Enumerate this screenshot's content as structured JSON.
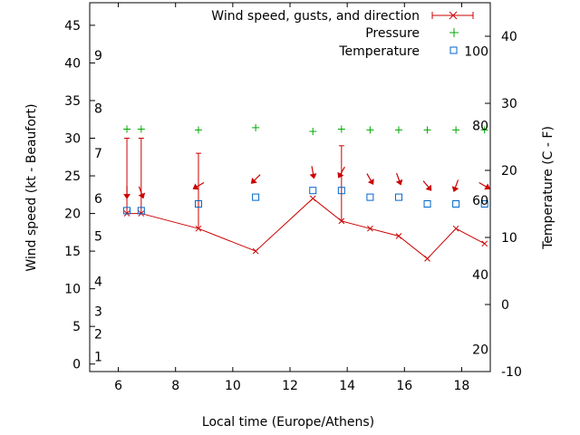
{
  "chart_data": {
    "type": "line",
    "xlabel": "Local time (Europe/Athens)",
    "ylabel_left": "Wind speed (kt - Beaufort)",
    "ylabel_right": "Temperature (C - F)",
    "xlim": [
      5,
      19
    ],
    "ylim_left": [
      -1,
      48
    ],
    "ylim_right": [
      -10,
      45
    ],
    "x_ticks": [
      6,
      8,
      10,
      12,
      14,
      16,
      18
    ],
    "y_left_ticks": [
      0,
      5,
      10,
      15,
      20,
      25,
      30,
      35,
      40,
      45
    ],
    "y_right_ticks": [
      -10,
      0,
      10,
      20,
      30,
      40
    ],
    "beaufort_labels": [
      {
        "label": "1",
        "kt": 1
      },
      {
        "label": "2",
        "kt": 4
      },
      {
        "label": "3",
        "kt": 7
      },
      {
        "label": "4",
        "kt": 11
      },
      {
        "label": "5",
        "kt": 17
      },
      {
        "label": "6",
        "kt": 22
      },
      {
        "label": "7",
        "kt": 28
      },
      {
        "label": "8",
        "kt": 34
      },
      {
        "label": "9",
        "kt": 41
      }
    ],
    "fahrenheit_labels": [
      {
        "label": "20",
        "f": 20
      },
      {
        "label": "40",
        "f": 40
      },
      {
        "label": "60",
        "f": 60
      },
      {
        "label": "80",
        "f": 80
      },
      {
        "label": "100",
        "f": 100
      }
    ],
    "legend": {
      "position": "top-right",
      "entries": [
        "Wind speed, gusts, and direction",
        "Pressure",
        "Temperature"
      ]
    },
    "colors": {
      "wind": "#cc0000",
      "pressure": "#00aa00",
      "temperature": "#0066cc"
    },
    "series": [
      {
        "name": "Wind speed, gusts, and direction",
        "axis": "left",
        "x": [
          6.3,
          6.8,
          8.8,
          10.8,
          12.8,
          13.8,
          14.8,
          15.8,
          16.8,
          17.8,
          18.8
        ],
        "values": [
          20,
          20,
          18,
          15,
          22,
          19,
          18,
          17,
          14,
          18,
          16
        ],
        "gusts": [
          30,
          30,
          28,
          null,
          null,
          29,
          null,
          null,
          null,
          null,
          null
        ],
        "direction_deg": [
          0,
          340,
          60,
          45,
          350,
          30,
          330,
          340,
          320,
          20,
          300
        ]
      },
      {
        "name": "Pressure",
        "axis": "left",
        "x": [
          6.3,
          6.8,
          8.8,
          10.8,
          12.8,
          13.8,
          14.8,
          15.8,
          16.8,
          17.8,
          18.8
        ],
        "values": [
          31.2,
          31.2,
          31.1,
          31.4,
          30.9,
          31.2,
          31.1,
          31.1,
          31.1,
          31.1,
          31.1
        ]
      },
      {
        "name": "Temperature",
        "axis": "right",
        "x": [
          6.3,
          6.8,
          8.8,
          10.8,
          12.8,
          13.8,
          14.8,
          15.8,
          16.8,
          17.8,
          18.8
        ],
        "values": [
          14,
          14,
          15,
          16,
          17,
          17,
          16,
          16,
          15,
          15,
          15
        ]
      }
    ]
  }
}
